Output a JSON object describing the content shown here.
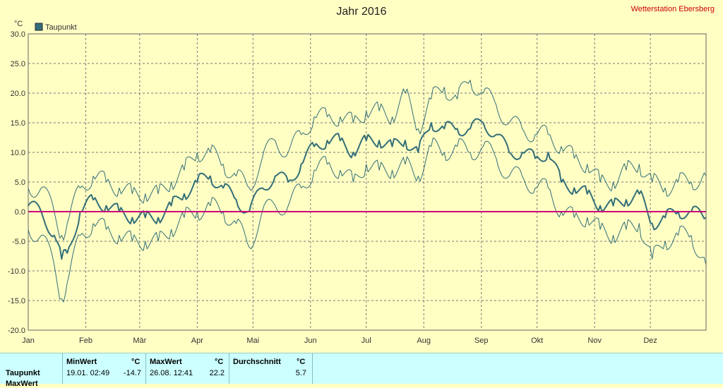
{
  "header": {
    "title": "Jahr 2016",
    "station": "Wetterstation Ebersberg"
  },
  "colors": {
    "background": "#ffffc4",
    "plot_bg": "#ffffc4",
    "series": "#336e78",
    "zero_line": "#cc0077",
    "station_text": "#cc0000",
    "stats_bg": "#ccffff"
  },
  "chart_data": {
    "type": "line",
    "title": "Jahr 2016",
    "ylabel": "°C",
    "ylim": [
      -20,
      30
    ],
    "yticks": [
      "30.0",
      "25.0",
      "20.0",
      "15.0",
      "10.0",
      "5.0",
      "0.0",
      "-5.0",
      "-10.0",
      "-15.0",
      "-20.0"
    ],
    "ytick_values": [
      30,
      25,
      20,
      15,
      10,
      5,
      0,
      -5,
      -10,
      -15,
      -20
    ],
    "xlim": [
      1,
      366
    ],
    "x_unit": "day of year 2016",
    "month_labels": [
      "Jan",
      "Feb",
      "Mär",
      "Apr",
      "Mai",
      "Jun",
      "Jul",
      "Aug",
      "Sep",
      "Okt",
      "Nov",
      "Dez"
    ],
    "month_start_days": [
      1,
      32,
      61,
      92,
      122,
      153,
      183,
      214,
      245,
      275,
      306,
      336
    ],
    "grid": true,
    "legend": {
      "position": "top-left",
      "entries": [
        "Taupunkt"
      ]
    },
    "reference_line": {
      "y": 0
    },
    "series": [
      {
        "name": "Taupunkt",
        "style": "daily mean (bold) with daily min/max envelope",
        "x": [
          1,
          8,
          15,
          19,
          22,
          29,
          36,
          43,
          50,
          57,
          64,
          71,
          78,
          85,
          92,
          99,
          106,
          113,
          120,
          127,
          134,
          141,
          148,
          155,
          162,
          169,
          176,
          183,
          190,
          197,
          204,
          211,
          218,
          225,
          232,
          239,
          246,
          253,
          260,
          267,
          274,
          281,
          288,
          295,
          302,
          309,
          316,
          323,
          330,
          337,
          344,
          351,
          358,
          366
        ],
        "mean": [
          1,
          0,
          -4,
          -8,
          -7,
          0,
          2,
          1,
          0,
          -1,
          -1,
          -1,
          1,
          3,
          5,
          6,
          4,
          2,
          0,
          4,
          6,
          5,
          8,
          11,
          12,
          12,
          10,
          12,
          12,
          11,
          12,
          10,
          15,
          14,
          14,
          14,
          15,
          13,
          10,
          10,
          9,
          10,
          5,
          4,
          3,
          1,
          1,
          2,
          3,
          -2,
          -1,
          0,
          0,
          -1
        ],
        "min": [
          -3,
          -4,
          -9,
          -14.7,
          -12,
          -4,
          -2,
          -3,
          -4,
          -5,
          -5,
          -5,
          -3,
          -1,
          0,
          1,
          0,
          -2,
          -6,
          0,
          1,
          1,
          4,
          7,
          8,
          7,
          5,
          8,
          7,
          7,
          8,
          6,
          11,
          10,
          11,
          10,
          11,
          9,
          6,
          6,
          4,
          4,
          0,
          -1,
          -1,
          -3,
          -4,
          -3,
          -2,
          -8,
          -5,
          -4,
          -4,
          -9
        ],
        "max": [
          4,
          4,
          0,
          -4,
          -2,
          4,
          6,
          5,
          4,
          3,
          3,
          3,
          5,
          7,
          10,
          10,
          8,
          6,
          4,
          9,
          12,
          10,
          13,
          16,
          16,
          16,
          15,
          17,
          17,
          16,
          20,
          14,
          19,
          21,
          19,
          22.2,
          20,
          18,
          15,
          14,
          13,
          13,
          11,
          9,
          8,
          5,
          5,
          7,
          8,
          5,
          4,
          5,
          5,
          6
        ]
      }
    ]
  },
  "stats": {
    "row_label": "Taupunkt",
    "row2_label_partial": "MaxWert",
    "min": {
      "header": "MinWert",
      "unit": "°C",
      "time": "19.01.  02:49",
      "value": "-14.7"
    },
    "max": {
      "header": "MaxWert",
      "unit": "°C",
      "time": "26.08.  12:41",
      "value": "22.2"
    },
    "avg": {
      "header": "Durchschnitt",
      "unit": "°C",
      "value": "5.7"
    }
  }
}
